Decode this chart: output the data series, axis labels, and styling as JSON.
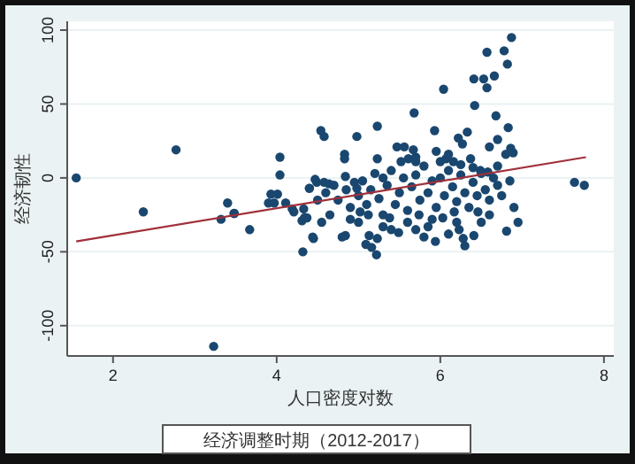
{
  "chart_data": {
    "type": "scatter",
    "title": "经济调整时期（2012-2017）",
    "xlabel": "人口密度对数",
    "ylabel": "经济韧性",
    "xlim": [
      1.44,
      8.12
    ],
    "ylim": [
      -120.5,
      106
    ],
    "xticks": [
      2,
      4,
      6,
      8
    ],
    "yticks": [
      -100,
      -50,
      0,
      50,
      100
    ],
    "grid": "y",
    "marker": "circle",
    "series": [
      {
        "color": "#1a476f",
        "x": [
          1.55,
          2.37,
          2.77,
          3.23,
          3.32,
          3.4,
          3.48,
          3.48,
          3.67,
          4.32,
          4.34,
          4.31,
          4.45,
          4.21,
          4.04,
          4.04,
          3.93,
          4.01,
          3.97,
          3.9,
          4.11,
          4.19,
          4.4,
          4.49,
          4.33,
          4.37,
          4.44,
          4.84,
          4.8,
          5.13,
          5.23,
          5.09,
          5.16,
          5.22,
          5.49,
          5.7,
          5.85,
          5.94,
          6.23,
          6.28,
          6.3,
          6.41,
          6.81,
          5.02,
          5.38,
          5.74,
          6.03,
          6.17,
          6.46,
          6.6,
          6.87,
          6.78,
          6.57,
          6.82,
          6.66,
          6.41,
          6.53,
          6.57,
          6.04,
          6.42,
          5.68,
          6.68,
          6.83,
          5.23,
          4.54,
          4.58,
          4.98,
          5.93,
          6.33,
          6.22,
          6.27,
          6.7,
          6.86,
          6.89,
          6.8,
          6.6,
          4.83,
          4.83,
          5.23,
          5.47,
          5.56,
          5.67,
          5.61,
          5.52,
          5.7,
          6.07,
          6.0,
          6.16,
          6.25,
          6.37,
          6.4,
          6.49,
          6.58,
          7.64,
          7.76,
          4.4,
          4.47,
          4.58,
          4.64,
          4.84,
          4.95,
          4.98,
          4.6,
          4.7,
          4.75,
          4.85,
          4.9,
          5.0,
          5.05,
          5.1,
          5.15,
          5.2,
          5.25,
          5.3,
          5.35,
          5.4,
          5.45,
          5.5,
          5.55,
          5.6,
          5.65,
          5.7,
          5.75,
          5.8,
          5.85,
          5.9,
          5.95,
          6.0,
          6.05,
          6.1,
          6.15,
          6.2,
          6.25,
          6.3,
          6.35,
          6.4,
          6.45,
          6.5,
          6.55,
          6.6,
          6.65,
          6.7,
          6.75,
          6.85,
          5.0,
          5.3,
          5.6,
          5.9,
          6.2,
          6.5,
          4.65,
          4.9,
          5.12,
          5.4,
          5.8,
          6.1,
          4.5,
          4.55,
          5.7,
          5.95,
          6.1,
          6.7,
          5.3,
          6.9,
          6.95
        ],
        "values": [
          0,
          -23,
          19,
          -114,
          -28,
          -17,
          -24,
          -24,
          -35,
          -50,
          -27,
          -29,
          -41,
          -23,
          14,
          2,
          -11,
          -11,
          -17,
          -17,
          -17,
          -21,
          -7,
          -3,
          -21,
          -27,
          -40,
          -39,
          -40,
          -39,
          -41,
          -45,
          -47,
          -52,
          -37,
          -35,
          -33,
          -43,
          -35,
          -41,
          -46,
          -39,
          -36,
          -23,
          -27,
          -25,
          -27,
          -23,
          -23,
          -25,
          95,
          86,
          85,
          77,
          69,
          67,
          67,
          61,
          60,
          49,
          44,
          42,
          34,
          35,
          32,
          28,
          28,
          32,
          31,
          27,
          23,
          26,
          20,
          17,
          16,
          21,
          16,
          13,
          13,
          21,
          21,
          19,
          13,
          11,
          11,
          13,
          11,
          11,
          9,
          13,
          7,
          5,
          4,
          -3,
          -5,
          -7,
          -1,
          -3,
          -4,
          1,
          -3,
          -7,
          -10,
          -5,
          -15,
          -8,
          -20,
          -12,
          -2,
          -18,
          -8,
          3,
          -14,
          -25,
          -5,
          5,
          -18,
          -10,
          0,
          -22,
          -6,
          2,
          -15,
          8,
          -10,
          -2,
          -20,
          0,
          -12,
          5,
          -6,
          -16,
          2,
          -10,
          -20,
          -3,
          -12,
          3,
          -8,
          -15,
          0,
          -5,
          -12,
          -2,
          -30,
          -33,
          -30,
          -28,
          -30,
          -30,
          -25,
          -28,
          -25,
          -35,
          -40,
          -38,
          -15,
          -30,
          14,
          18,
          16,
          8,
          0,
          -20,
          -30
        ]
      },
      {
        "type": "line",
        "color": "#a0303a",
        "marker": "none",
        "x": [
          1.55,
          7.78
        ],
        "values": [
          -43,
          14
        ]
      }
    ]
  }
}
